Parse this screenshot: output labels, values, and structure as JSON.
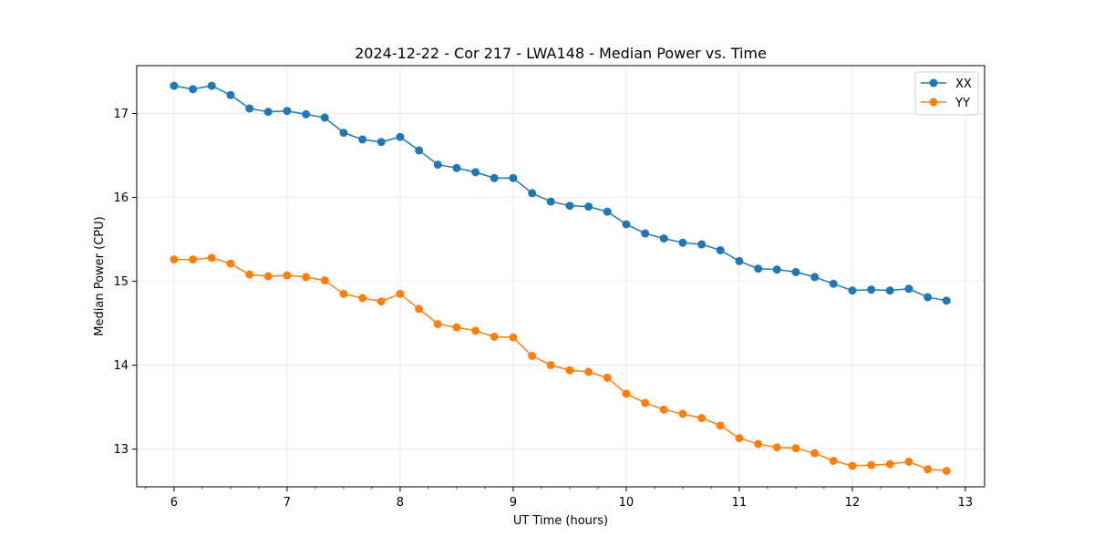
{
  "chart_data": {
    "type": "line",
    "title": "2024-12-22 - Cor 217 - LWA148 - Median Power vs. Time",
    "xlabel": "UT Time (hours)",
    "ylabel": "Median Power (CPU)",
    "xlim": [
      5.67,
      13.17
    ],
    "ylim": [
      12.55,
      17.57
    ],
    "xticks": [
      6,
      7,
      8,
      9,
      10,
      11,
      12,
      13
    ],
    "xtick_labels": [
      "6",
      "7",
      "8",
      "9",
      "10",
      "11",
      "12",
      "13"
    ],
    "yticks": [
      13,
      14,
      15,
      16,
      17
    ],
    "ytick_labels": [
      "13",
      "14",
      "15",
      "16",
      "17"
    ],
    "grid": true,
    "legend_position": "top-right",
    "x": [
      6.0,
      6.167,
      6.333,
      6.5,
      6.667,
      6.833,
      7.0,
      7.167,
      7.333,
      7.5,
      7.667,
      7.833,
      8.0,
      8.167,
      8.333,
      8.5,
      8.667,
      8.833,
      9.0,
      9.167,
      9.333,
      9.5,
      9.667,
      9.833,
      10.0,
      10.167,
      10.333,
      10.5,
      10.667,
      10.833,
      11.0,
      11.167,
      11.333,
      11.5,
      11.667,
      11.833,
      12.0,
      12.167,
      12.333,
      12.5,
      12.667,
      12.833
    ],
    "series": [
      {
        "name": "XX",
        "color": "#1f77b4",
        "values": [
          17.33,
          17.29,
          17.33,
          17.22,
          17.06,
          17.02,
          17.03,
          16.99,
          16.95,
          16.77,
          16.69,
          16.66,
          16.72,
          16.56,
          16.39,
          16.35,
          16.3,
          16.23,
          16.23,
          16.05,
          15.95,
          15.9,
          15.89,
          15.83,
          15.68,
          15.57,
          15.51,
          15.46,
          15.44,
          15.37,
          15.24,
          15.15,
          15.14,
          15.11,
          15.05,
          14.97,
          14.89,
          14.9,
          14.89,
          14.91,
          14.81,
          14.77
        ]
      },
      {
        "name": "YY",
        "color": "#ff7f0e",
        "values": [
          15.26,
          15.26,
          15.28,
          15.21,
          15.08,
          15.06,
          15.07,
          15.05,
          15.01,
          14.85,
          14.8,
          14.76,
          14.85,
          14.67,
          14.49,
          14.45,
          14.41,
          14.34,
          14.33,
          14.11,
          14.0,
          13.94,
          13.92,
          13.85,
          13.66,
          13.55,
          13.47,
          13.42,
          13.37,
          13.28,
          13.13,
          13.06,
          13.02,
          13.01,
          12.95,
          12.86,
          12.8,
          12.81,
          12.82,
          12.85,
          12.76,
          12.74
        ]
      }
    ]
  }
}
